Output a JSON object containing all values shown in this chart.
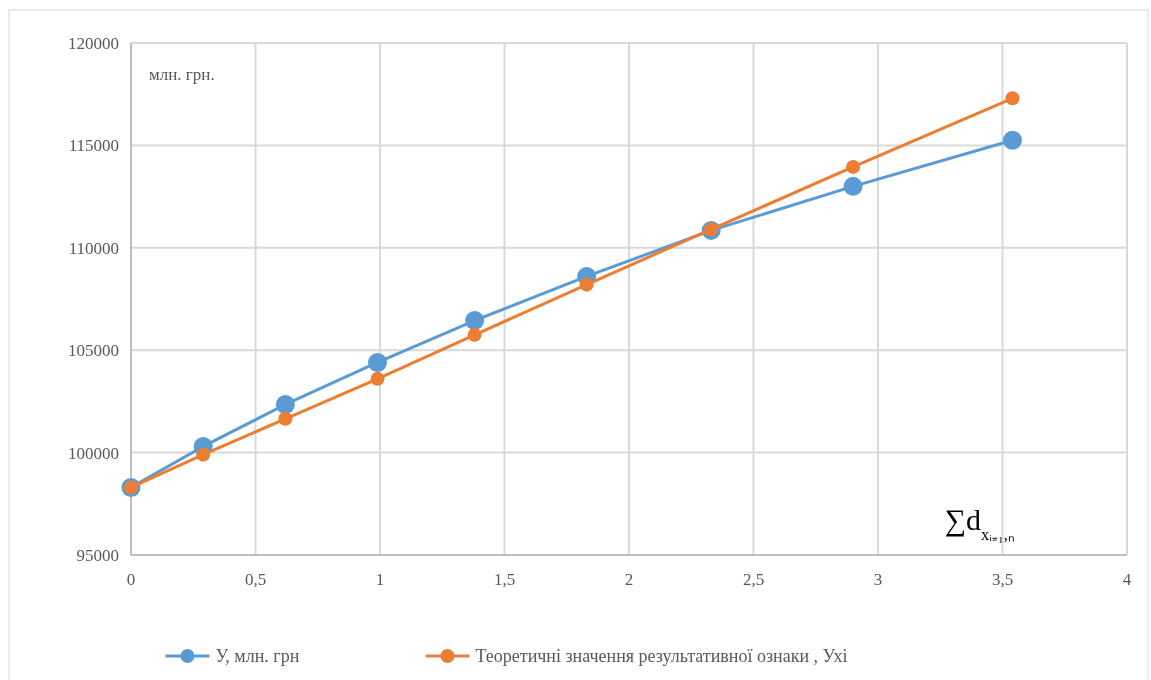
{
  "chart_data": {
    "type": "line",
    "x": [
      0,
      0.29,
      0.62,
      0.99,
      1.38,
      1.83,
      2.33,
      2.9,
      3.54
    ],
    "series": [
      {
        "name": "У, млн. грн",
        "color": "#5b9bd5",
        "values": [
          98300,
          100300,
          102350,
          104400,
          106450,
          108600,
          110850,
          113000,
          115250
        ]
      },
      {
        "name": "Теоретичні значення результативної ознаки , Ухі",
        "color": "#ed7d31",
        "values": [
          98300,
          99900,
          101650,
          103600,
          105750,
          108200,
          110900,
          113950,
          117300
        ]
      }
    ],
    "xlim": [
      0,
      4
    ],
    "xticks": [
      0,
      {
        "value": 0.5,
        "label": "0,5"
      },
      1,
      {
        "value": 1.5,
        "label": "1,5"
      },
      2,
      {
        "value": 2.5,
        "label": "2,5"
      },
      3,
      {
        "value": 3.5,
        "label": "3,5"
      },
      4
    ],
    "ylim": [
      95000,
      120000
    ],
    "yticks": [
      95000,
      100000,
      105000,
      110000,
      115000,
      120000
    ],
    "annotations": [
      {
        "text": "млн. грн."
      },
      {
        "text": "∑d$_{xᵢ₌₁,ₙ}$"
      }
    ],
    "grid": true,
    "legend": "bottom",
    "marker": "circle",
    "line_style": "solid"
  }
}
